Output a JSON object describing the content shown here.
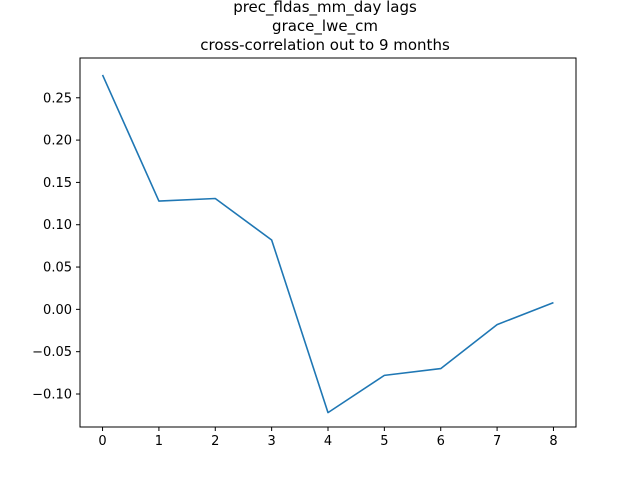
{
  "chart_data": {
    "type": "line",
    "title_lines": [
      "prec_fldas_mm_day lags",
      "grace_lwe_cm",
      "cross-correlation out to 9 months"
    ],
    "xlabel": "",
    "ylabel": "",
    "x": [
      0,
      1,
      2,
      3,
      4,
      5,
      6,
      7,
      8
    ],
    "series": [
      {
        "color": "#1f77b4",
        "values": [
          0.277,
          0.128,
          0.131,
          0.082,
          -0.122,
          -0.078,
          -0.07,
          -0.018,
          0.008
        ]
      }
    ],
    "xlim": [
      -0.4,
      8.4
    ],
    "ylim": [
      -0.139,
      0.297
    ],
    "x_ticks": [
      0,
      1,
      2,
      3,
      4,
      5,
      6,
      7,
      8
    ],
    "x_tick_labels": [
      "0",
      "1",
      "2",
      "3",
      "4",
      "5",
      "6",
      "7",
      "8"
    ],
    "y_ticks": [
      -0.1,
      -0.05,
      0.0,
      0.05,
      0.1,
      0.15,
      0.2,
      0.25
    ],
    "y_tick_labels": [
      "−0.10",
      "−0.05",
      "0.00",
      "0.05",
      "0.10",
      "0.15",
      "0.20",
      "0.25"
    ],
    "grid": false,
    "legend": "none"
  }
}
